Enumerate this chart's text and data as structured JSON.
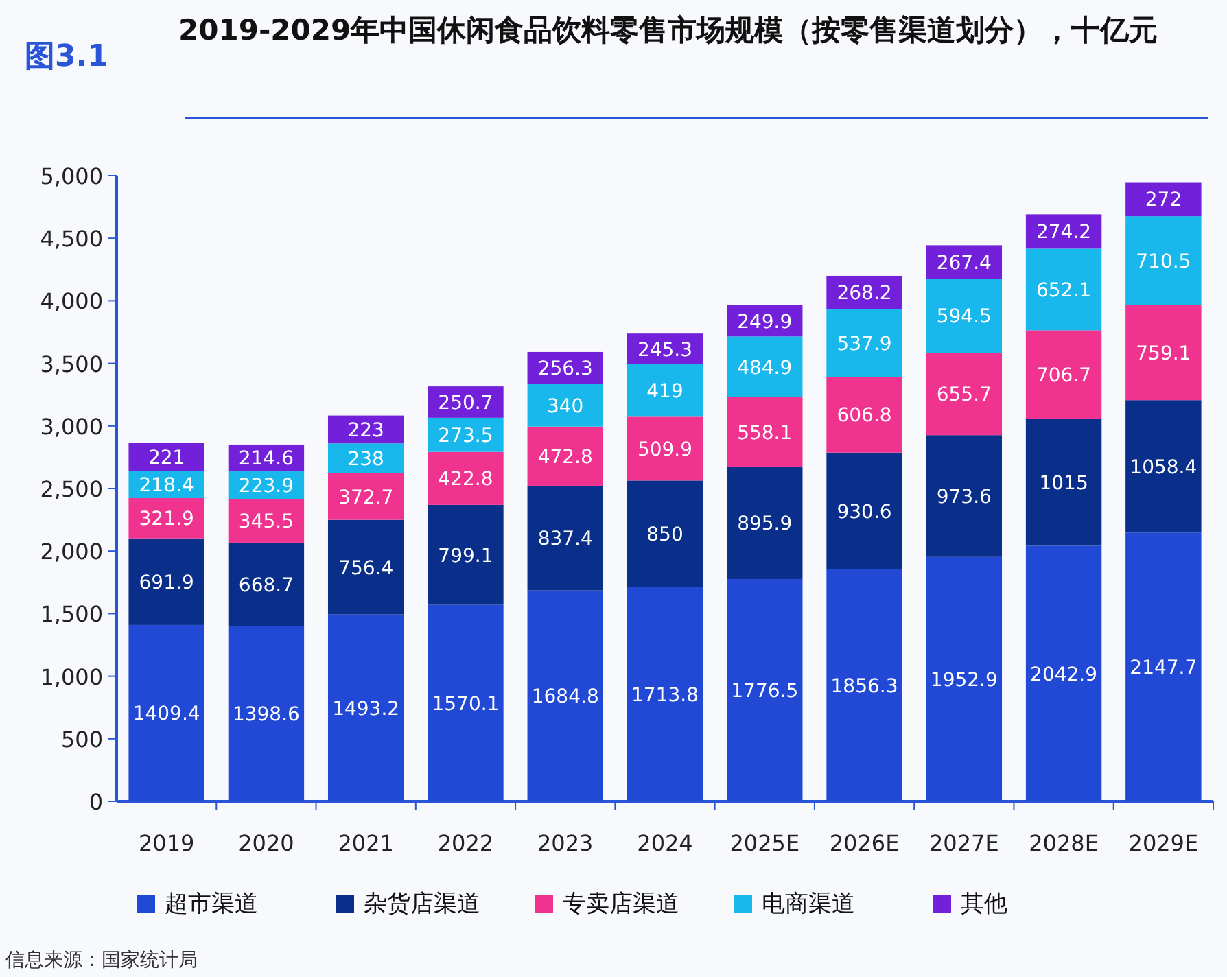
{
  "chart_data": {
    "type": "bar",
    "stacked": true,
    "data_labels": true,
    "legend": "bottom",
    "grid": false,
    "title": "2019-2029年中国休闲食品饮料零售市场规模（按零售渠道划分），十亿元",
    "annotations": [
      "图3.1",
      "信息来源：国家统计局"
    ],
    "categories": [
      "2019",
      "2020",
      "2021",
      "2022",
      "2023",
      "2024",
      "2025E",
      "2026E",
      "2027E",
      "2028E",
      "2029E"
    ],
    "ylim": [
      0,
      5000
    ],
    "yticks": [
      0,
      500,
      {
        "value": 1000,
        "label": "1,000"
      },
      {
        "value": 1500,
        "label": "1,500"
      },
      {
        "value": 2000,
        "label": "2,000"
      },
      {
        "value": 2500,
        "label": "2,500"
      },
      {
        "value": 3000,
        "label": "3,000"
      },
      {
        "value": 3500,
        "label": "3,500"
      },
      {
        "value": 4000,
        "label": "4,000"
      },
      {
        "value": 4500,
        "label": "4,500"
      },
      {
        "value": 5000,
        "label": "5,000"
      }
    ],
    "series": [
      {
        "name": "超市渠道",
        "color": "#2149d6",
        "values": [
          1409.4,
          1398.6,
          1493.2,
          1570.1,
          1684.8,
          1713.8,
          1776.5,
          1856.3,
          1952.9,
          2042.9,
          2147.7
        ]
      },
      {
        "name": "杂货店渠道",
        "color": "#0a2f8a",
        "values": [
          691.9,
          668.7,
          756.4,
          799.1,
          837.4,
          850,
          895.9,
          930.6,
          973.6,
          1015,
          1058.4
        ]
      },
      {
        "name": "专卖店渠道",
        "color": "#f0338f",
        "values": [
          321.9,
          345.5,
          372.7,
          422.8,
          472.8,
          509.9,
          558.1,
          606.8,
          655.7,
          706.7,
          759.1
        ]
      },
      {
        "name": "电商渠道",
        "color": "#18b8ec",
        "values": [
          218.4,
          223.9,
          238,
          273.5,
          340,
          419,
          484.9,
          537.9,
          594.5,
          652.1,
          710.5
        ]
      },
      {
        "name": "其他",
        "color": "#7220d9",
        "values": [
          221,
          214.6,
          223,
          250.7,
          256.3,
          245.3,
          249.9,
          268.2,
          267.4,
          274.2,
          272
        ]
      }
    ]
  }
}
